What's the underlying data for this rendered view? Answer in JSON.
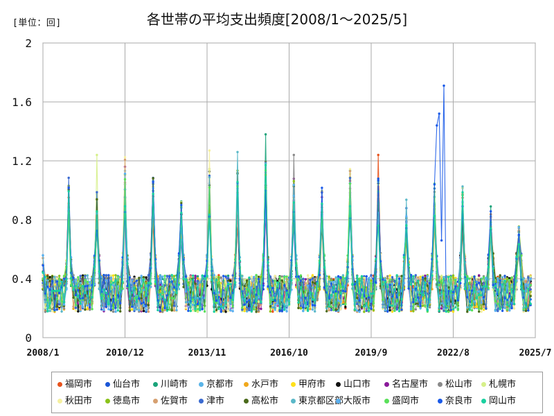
{
  "header": {
    "unit": "[単位：回]",
    "title": "各世帯の平均支出頻度[2008/1～2025/5]"
  },
  "chart_data": {
    "type": "line",
    "title": "各世帯の平均支出頻度[2008/1～2025/5]",
    "unit": "[単位：回]",
    "xlabel": "",
    "ylabel": "",
    "x_ticks": [
      "2008/1",
      "2010/12",
      "2013/11",
      "2016/10",
      "2019/9",
      "2022/8",
      "2025/7"
    ],
    "ylim": [
      0,
      2
    ],
    "y_ticks": [
      "0",
      "0.4",
      "0.8",
      "1.2",
      "1.6",
      "2"
    ],
    "y_tick_values": [
      0,
      0.4,
      0.8,
      1.2,
      1.6,
      2
    ],
    "grid": true,
    "legend_position": "bottom",
    "x_start": "2008-01",
    "x_end": "2025-07",
    "december_peaks": [
      1.05,
      0.95,
      1.18,
      1.05,
      0.9,
      1.1,
      1.1,
      1.15,
      1.05,
      1.0,
      1.1,
      1.05,
      0.9,
      1.05,
      1.0,
      0.9,
      0.75
    ],
    "baseline": 0.3,
    "notable_points": [
      {
        "series": "奈良市",
        "x": "2021-12",
        "y": 1.04
      },
      {
        "series": "奈良市",
        "x": "2022-01",
        "y": 1.44
      },
      {
        "series": "奈良市",
        "x": "2022-02",
        "y": 1.52
      },
      {
        "series": "奈良市",
        "x": "2022-03",
        "y": 0.66
      },
      {
        "series": "奈良市",
        "x": "2022-04",
        "y": 1.71
      },
      {
        "series": "川崎市",
        "x": "2015-12",
        "y": 1.38
      },
      {
        "series": "東京都区部",
        "x": "2014-12",
        "y": 1.26
      },
      {
        "series": "秋田市",
        "x": "2013-12",
        "y": 1.27
      },
      {
        "series": "札幌市",
        "x": "2009-12",
        "y": 1.24
      },
      {
        "series": "福岡市",
        "x": "2019-12",
        "y": 1.24
      },
      {
        "series": "松山市",
        "x": "2016-12",
        "y": 1.24
      }
    ],
    "series": [
      {
        "name": "福岡市",
        "color": "#e8531c"
      },
      {
        "name": "仙台市",
        "color": "#1a56d6"
      },
      {
        "name": "川崎市",
        "color": "#1aa37a"
      },
      {
        "name": "京都市",
        "color": "#5ab4e8"
      },
      {
        "name": "水戸市",
        "color": "#f0a81c"
      },
      {
        "name": "甲府市",
        "color": "#ffe01a"
      },
      {
        "name": "山口市",
        "color": "#111111"
      },
      {
        "name": "名古屋市",
        "color": "#8a1a9a"
      },
      {
        "name": "松山市",
        "color": "#8a8a8a"
      },
      {
        "name": "札幌市",
        "color": "#d6f08a"
      },
      {
        "name": "秋田市",
        "color": "#f5f0a0"
      },
      {
        "name": "徳島市",
        "color": "#8ac21a"
      },
      {
        "name": "佐賀市",
        "color": "#d6a070"
      },
      {
        "name": "津市",
        "color": "#3a6ad0"
      },
      {
        "name": "高松市",
        "color": "#4a6a1a"
      },
      {
        "name": "東京都区部",
        "color": "#5ab8c8"
      },
      {
        "name": "大阪市",
        "color": "#5ab0f0"
      },
      {
        "name": "盛岡市",
        "color": "#5ae05a"
      },
      {
        "name": "奈良市",
        "color": "#1a5ae8"
      },
      {
        "name": "岡山市",
        "color": "#1ad0a0"
      }
    ]
  }
}
